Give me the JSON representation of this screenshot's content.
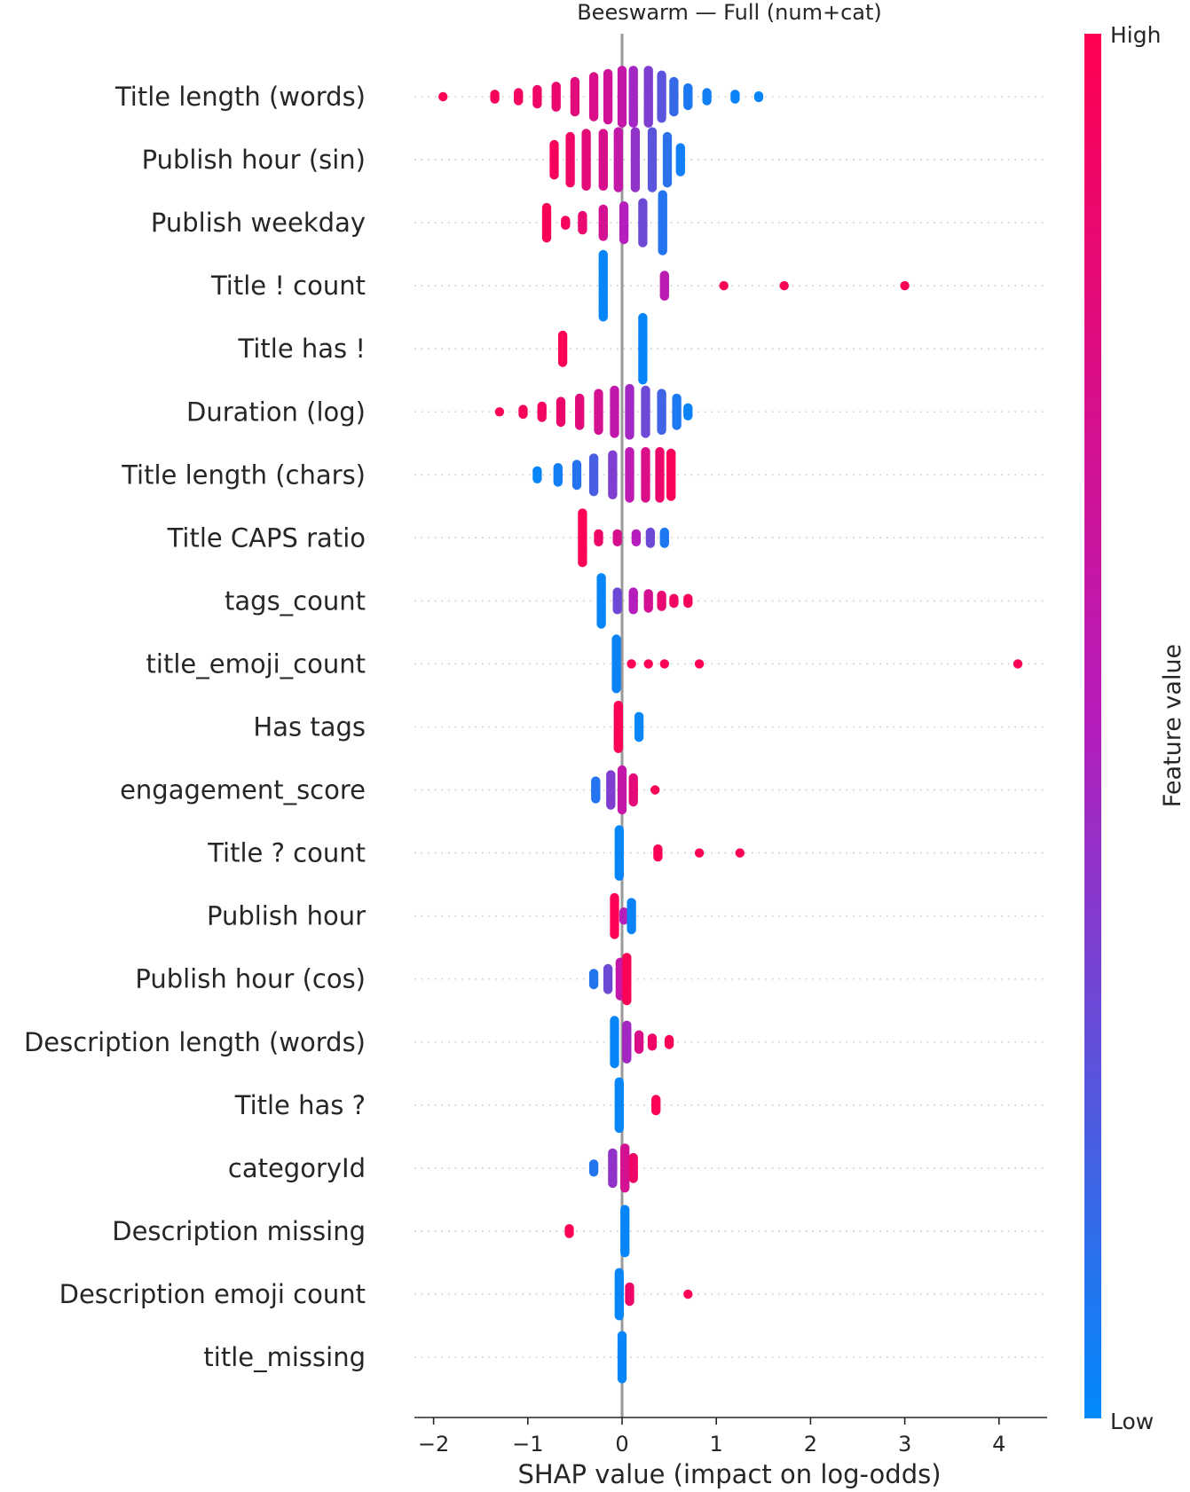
{
  "chart_data": {
    "type": "scatter",
    "title": "Beeswarm — Full (num+cat)",
    "xlabel": "SHAP value (impact on log-odds)",
    "xlim": [
      -2.22,
      4.52
    ],
    "xticks": [
      -2,
      -1,
      0,
      1,
      2,
      3,
      4
    ],
    "xtick_labels": [
      "−2",
      "−1",
      "0",
      "1",
      "2",
      "3",
      "4"
    ],
    "colorbar": {
      "label": "Feature value",
      "high_label": "High",
      "low_label": "Low",
      "low_color": "#008afb",
      "mid_color": "#b51dbd",
      "high_color": "#ff0051"
    },
    "zero_line_color": "#999999",
    "features": [
      {
        "name": "Title length (words)",
        "clusters": [
          [
            -1.9,
            0.98,
            1
          ],
          [
            -1.35,
            0.95,
            4
          ],
          [
            -1.1,
            0.93,
            6
          ],
          [
            -0.9,
            0.9,
            10
          ],
          [
            -0.7,
            0.86,
            14
          ],
          [
            -0.5,
            0.8,
            20
          ],
          [
            -0.3,
            0.74,
            26
          ],
          [
            -0.15,
            0.68,
            30
          ],
          [
            0.0,
            0.6,
            34
          ],
          [
            0.12,
            0.45,
            34
          ],
          [
            0.28,
            0.35,
            34
          ],
          [
            0.42,
            0.25,
            28
          ],
          [
            0.55,
            0.15,
            20
          ],
          [
            0.7,
            0.08,
            12
          ],
          [
            0.9,
            0.05,
            6
          ],
          [
            1.2,
            0.03,
            4
          ],
          [
            1.45,
            0.02,
            2
          ]
        ]
      },
      {
        "name": "Publish hour (sin)",
        "clusters": [
          [
            -0.72,
            0.95,
            20
          ],
          [
            -0.55,
            0.9,
            30
          ],
          [
            -0.38,
            0.82,
            34
          ],
          [
            -0.2,
            0.72,
            34
          ],
          [
            -0.04,
            0.6,
            36
          ],
          [
            0.14,
            0.4,
            36
          ],
          [
            0.32,
            0.25,
            36
          ],
          [
            0.48,
            0.12,
            30
          ],
          [
            0.62,
            0.05,
            16
          ]
        ]
      },
      {
        "name": "Publish weekday",
        "clusters": [
          [
            -0.8,
            0.98,
            20
          ],
          [
            -0.6,
            0.94,
            4
          ],
          [
            -0.42,
            0.85,
            10
          ],
          [
            -0.2,
            0.7,
            18
          ],
          [
            0.02,
            0.5,
            22
          ],
          [
            0.22,
            0.3,
            26
          ],
          [
            0.43,
            0.1,
            36
          ]
        ]
      },
      {
        "name": "Title ! count",
        "clusters": [
          [
            -0.2,
            0.02,
            40
          ],
          [
            0.45,
            0.55,
            14
          ],
          [
            1.08,
            0.98,
            1
          ],
          [
            1.72,
            0.98,
            1
          ],
          [
            3.0,
            0.98,
            1
          ]
        ]
      },
      {
        "name": "Title has !",
        "clusters": [
          [
            -0.63,
            0.98,
            18
          ],
          [
            0.22,
            0.02,
            40
          ]
        ]
      },
      {
        "name": "Duration (log)",
        "clusters": [
          [
            -1.3,
            0.98,
            1
          ],
          [
            -1.05,
            0.95,
            4
          ],
          [
            -0.85,
            0.92,
            8
          ],
          [
            -0.65,
            0.88,
            14
          ],
          [
            -0.45,
            0.8,
            18
          ],
          [
            -0.25,
            0.7,
            24
          ],
          [
            -0.08,
            0.58,
            28
          ],
          [
            0.08,
            0.45,
            30
          ],
          [
            0.25,
            0.3,
            28
          ],
          [
            0.42,
            0.18,
            24
          ],
          [
            0.58,
            0.08,
            18
          ],
          [
            0.7,
            0.03,
            6
          ]
        ]
      },
      {
        "name": "Title length (chars)",
        "clusters": [
          [
            -0.9,
            0.02,
            6
          ],
          [
            -0.68,
            0.05,
            10
          ],
          [
            -0.48,
            0.1,
            14
          ],
          [
            -0.3,
            0.2,
            22
          ],
          [
            -0.1,
            0.35,
            26
          ],
          [
            0.08,
            0.55,
            30
          ],
          [
            0.25,
            0.75,
            30
          ],
          [
            0.4,
            0.88,
            30
          ],
          [
            0.52,
            0.96,
            28
          ]
        ]
      },
      {
        "name": "Title CAPS ratio",
        "clusters": [
          [
            -0.42,
            0.98,
            32
          ],
          [
            -0.25,
            0.9,
            6
          ],
          [
            -0.05,
            0.72,
            6
          ],
          [
            0.15,
            0.5,
            6
          ],
          [
            0.3,
            0.3,
            8
          ],
          [
            0.45,
            0.08,
            8
          ]
        ]
      },
      {
        "name": "tags_count",
        "clusters": [
          [
            -0.22,
            0.02,
            30
          ],
          [
            -0.05,
            0.3,
            12
          ],
          [
            0.12,
            0.5,
            12
          ],
          [
            0.28,
            0.7,
            10
          ],
          [
            0.42,
            0.85,
            8
          ],
          [
            0.55,
            0.92,
            4
          ],
          [
            0.7,
            0.95,
            4
          ]
        ]
      },
      {
        "name": "title_emoji_count",
        "clusters": [
          [
            -0.06,
            0.03,
            32
          ],
          [
            0.1,
            0.98,
            1
          ],
          [
            0.28,
            0.98,
            1
          ],
          [
            0.45,
            0.98,
            1
          ],
          [
            0.82,
            0.98,
            1
          ],
          [
            4.2,
            0.98,
            1
          ]
        ]
      },
      {
        "name": "Has tags",
        "clusters": [
          [
            -0.04,
            0.98,
            28
          ],
          [
            0.18,
            0.02,
            14
          ]
        ]
      },
      {
        "name": "engagement_score",
        "clusters": [
          [
            -0.28,
            0.1,
            12
          ],
          [
            -0.12,
            0.35,
            20
          ],
          [
            0.0,
            0.6,
            26
          ],
          [
            0.12,
            0.82,
            16
          ],
          [
            0.35,
            0.97,
            1
          ]
        ]
      },
      {
        "name": "Title ? count",
        "clusters": [
          [
            -0.03,
            0.02,
            30
          ],
          [
            0.38,
            0.98,
            6
          ],
          [
            0.82,
            0.98,
            1
          ],
          [
            1.25,
            0.98,
            1
          ]
        ]
      },
      {
        "name": "Publish hour",
        "clusters": [
          [
            -0.08,
            0.98,
            24
          ],
          [
            0.02,
            0.5,
            6
          ],
          [
            0.1,
            0.03,
            18
          ]
        ]
      },
      {
        "name": "Publish hour (cos)",
        "clusters": [
          [
            -0.3,
            0.1,
            8
          ],
          [
            -0.15,
            0.3,
            14
          ],
          [
            -0.02,
            0.6,
            22
          ],
          [
            0.05,
            0.97,
            28
          ]
        ]
      },
      {
        "name": "Description length (words)",
        "clusters": [
          [
            -0.08,
            0.02,
            28
          ],
          [
            0.05,
            0.45,
            22
          ],
          [
            0.18,
            0.75,
            10
          ],
          [
            0.32,
            0.9,
            6
          ],
          [
            0.5,
            0.97,
            4
          ]
        ]
      },
      {
        "name": "Title has ?",
        "clusters": [
          [
            -0.03,
            0.02,
            30
          ],
          [
            0.36,
            0.98,
            8
          ]
        ]
      },
      {
        "name": "categoryId",
        "clusters": [
          [
            -0.3,
            0.1,
            6
          ],
          [
            -0.1,
            0.4,
            20
          ],
          [
            0.03,
            0.7,
            26
          ],
          [
            0.12,
            0.9,
            14
          ]
        ]
      },
      {
        "name": "Description missing",
        "clusters": [
          [
            -0.56,
            0.98,
            4
          ],
          [
            0.03,
            0.02,
            28
          ]
        ]
      },
      {
        "name": "Description emoji count",
        "clusters": [
          [
            -0.03,
            0.02,
            28
          ],
          [
            0.08,
            0.9,
            10
          ],
          [
            0.7,
            0.98,
            1
          ]
        ]
      },
      {
        "name": "title_missing",
        "clusters": [
          [
            0.0,
            0.02,
            28
          ]
        ]
      }
    ]
  }
}
